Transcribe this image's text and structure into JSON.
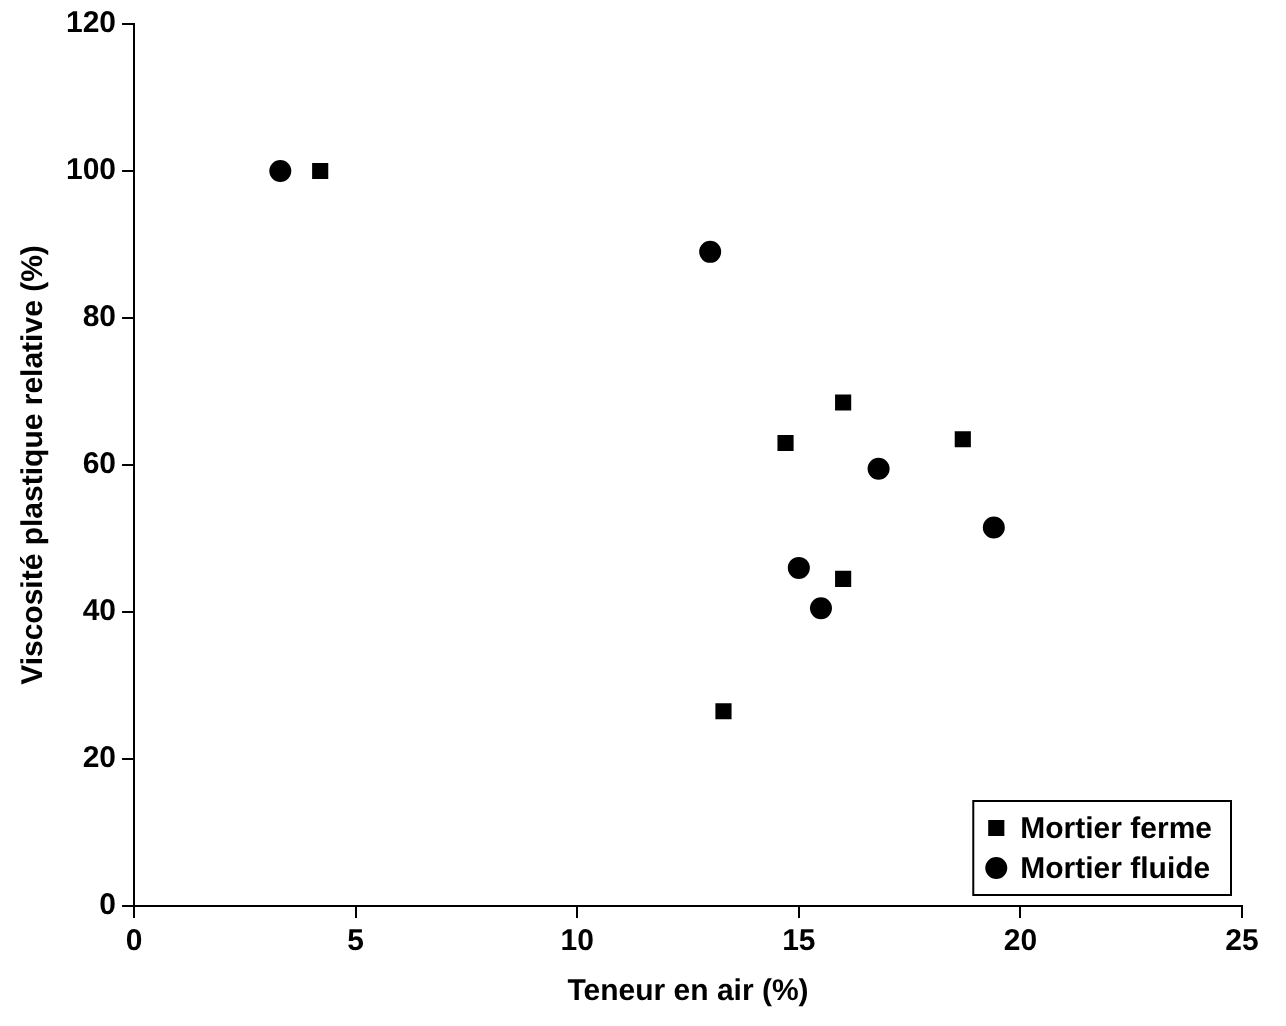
{
  "chart_data": {
    "type": "scatter",
    "xlabel": "Teneur en air (%)",
    "ylabel": "Viscosité plastique relative (%)",
    "xlim": [
      0,
      25
    ],
    "xticks": [
      0,
      5,
      10,
      15,
      20,
      25
    ],
    "ylim": [
      0,
      120
    ],
    "yticks": [
      0,
      20,
      40,
      60,
      80,
      100,
      120
    ],
    "grid": false,
    "legend": "bottom right",
    "series": [
      {
        "name": "Mortier ferme",
        "color": "#000000",
        "marker": "square",
        "x": [
          4.2,
          14.7,
          16.0,
          18.7,
          16.0,
          13.3
        ],
        "values": [
          100,
          63,
          68.5,
          63.5,
          44.5,
          26.5
        ]
      },
      {
        "name": "Mortier fluide",
        "color": "#000000",
        "marker": "circle",
        "x": [
          3.3,
          13.0,
          16.8,
          15.0,
          19.4,
          15.5
        ],
        "values": [
          100,
          89,
          59.5,
          46,
          51.5,
          40.5
        ]
      }
    ]
  }
}
